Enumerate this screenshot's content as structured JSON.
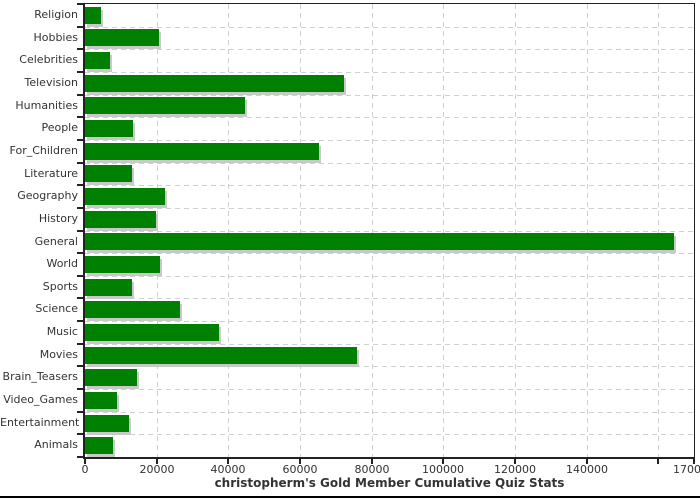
{
  "title": "christopherm's Gold Member Cumulative Quiz Stats",
  "colors": {
    "bar": "#008000",
    "bar_shadow": "#c9c9c9",
    "grid": "#ccd1d1",
    "axis": "#222222",
    "text": "#333333",
    "bottom_rule": "#000000"
  },
  "chart_data": {
    "type": "bar",
    "orientation": "horizontal",
    "title": "christopherm's Gold Member Cumulative Quiz Stats",
    "xlabel": "",
    "ylabel": "",
    "grid": true,
    "legend": false,
    "xlim": [
      0,
      170000
    ],
    "categories": [
      "Religion",
      "Hobbies",
      "Celebrities",
      "Television",
      "Humanities",
      "People",
      "For_Children",
      "Literature",
      "Geography",
      "History",
      "General",
      "World",
      "Sports",
      "Science",
      "Music",
      "Movies",
      "Brain_Teasers",
      "Video_Games",
      "Entertainment",
      "Animals"
    ],
    "values": [
      4500,
      20700,
      7000,
      72400,
      44800,
      13500,
      65400,
      13200,
      22400,
      19700,
      164500,
      21000,
      13200,
      26600,
      37500,
      76000,
      14600,
      8900,
      12400,
      7900
    ],
    "x_ticks": [
      {
        "v": 0,
        "label": "0"
      },
      {
        "v": 20000,
        "label": "20000"
      },
      {
        "v": 40000,
        "label": "40000"
      },
      {
        "v": 60000,
        "label": "60000"
      },
      {
        "v": 80000,
        "label": "80000"
      },
      {
        "v": 100000,
        "label": "100000"
      },
      {
        "v": 120000,
        "label": "120000"
      },
      {
        "v": 140000,
        "label": "140000"
      },
      {
        "v": 160000,
        "label": ""
      },
      {
        "v": 170000,
        "label": "170000"
      }
    ],
    "bar_color": "#008000"
  }
}
